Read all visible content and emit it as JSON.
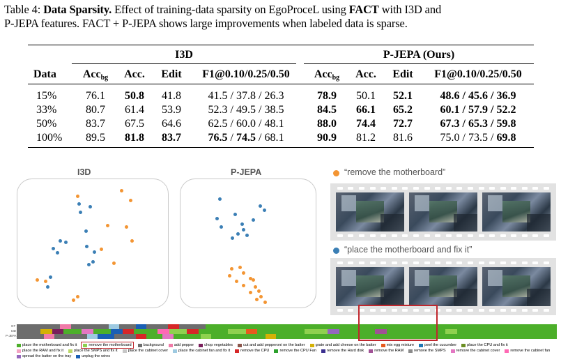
{
  "caption": {
    "label": "Table 4:",
    "title": "Data Sparsity.",
    "text_a": "Effect of training-data sparsity on EgoProceL using",
    "method": "FACT",
    "text_b": "with I3D and",
    "line2": "P-JEPA features. FACT + P-JEPA shows large improvements when labeled data is sparse."
  },
  "table": {
    "group_i3d": "I3D",
    "group_pjepa": "P-JEPA (Ours)",
    "col_data": "Data",
    "col_acc_bg": "Acc",
    "col_acc_bg_sub": "bg",
    "col_acc": "Acc.",
    "col_edit": "Edit",
    "col_f1": "F1@0.10/0.25/0.50",
    "rows": [
      {
        "data": "15%",
        "i3d": {
          "accbg": "76.1",
          "acc": "50.8",
          "edit": "41.8",
          "f1a": "41.5",
          "f1b": "37.8",
          "f1c": "26.3"
        },
        "pj": {
          "accbg": "78.9",
          "acc": "50.1",
          "edit": "52.1",
          "f1a": "48.6",
          "f1b": "45.6",
          "f1c": "36.9"
        }
      },
      {
        "data": "33%",
        "i3d": {
          "accbg": "80.7",
          "acc": "61.4",
          "edit": "53.9",
          "f1a": "52.3",
          "f1b": "49.5",
          "f1c": "38.5"
        },
        "pj": {
          "accbg": "84.5",
          "acc": "66.1",
          "edit": "65.2",
          "f1a": "60.1",
          "f1b": "57.9",
          "f1c": "52.2"
        }
      },
      {
        "data": "50%",
        "i3d": {
          "accbg": "83.7",
          "acc": "67.5",
          "edit": "64.6",
          "f1a": "62.5",
          "f1b": "60.0",
          "f1c": "48.1"
        },
        "pj": {
          "accbg": "88.0",
          "acc": "74.4",
          "edit": "72.7",
          "f1a": "67.3",
          "f1b": "65.3",
          "f1c": "59.8"
        }
      },
      {
        "data": "100%",
        "i3d": {
          "accbg": "89.5",
          "acc": "81.8",
          "edit": "83.7",
          "f1a": "76.5",
          "f1b": "74.5",
          "f1c": "68.1"
        },
        "pj": {
          "accbg": "90.9",
          "acc": "81.2",
          "edit": "81.6",
          "f1a": "75.0",
          "f1b": "73.5",
          "f1c": "69.8"
        }
      }
    ]
  },
  "figure": {
    "panel_i3d_title": "I3D",
    "panel_pjepa_title": "P-JEPA",
    "quote_orange": "“remove the motherboard”",
    "quote_blue": "“place the motherboard and fix it”",
    "colors": {
      "blue": "#3b7fb5",
      "orange": "#f39533",
      "highlight": "#c0272d"
    },
    "row_labels": [
      "GT",
      "I3D",
      "P-JEPA"
    ],
    "legend": [
      {
        "label": "place the motherboard and fix it",
        "color": "#4caf2a"
      },
      {
        "label": "remove the motherboard",
        "color": "#8fd14f",
        "highlight": true
      },
      {
        "label": "background",
        "color": "#6d6d6d"
      },
      {
        "label": "add pepper",
        "color": "#f07aa8"
      },
      {
        "label": "chop vegetables",
        "color": "#7a1f5c"
      },
      {
        "label": "cut and add pepperoni on the batter",
        "color": "#8c564b"
      },
      {
        "label": "grate and add cheese on the batter",
        "color": "#d4b106"
      },
      {
        "label": "mix egg mixture",
        "color": "#e65a1e"
      },
      {
        "label": "peel the cucumber",
        "color": "#1f77b4"
      },
      {
        "label": "place the CPU and fix it",
        "color": "#6b8e23"
      },
      {
        "label": "place the RAM and fix it",
        "color": "#f4a3c4"
      },
      {
        "label": "place the SMPS and fix it",
        "color": "#bcd86a"
      },
      {
        "label": "place the cabinet cover",
        "color": "#c7c7c7"
      },
      {
        "label": "place the cabinet fan and fix it",
        "color": "#9ecae1"
      },
      {
        "label": "remove the CPU",
        "color": "#d62728"
      },
      {
        "label": "remove the CPU Fan",
        "color": "#2ca02c"
      },
      {
        "label": "remove the Hard disk",
        "color": "#3b2f8f"
      },
      {
        "label": "remove the RAM",
        "color": "#a05195"
      },
      {
        "label": "remove the SMPS",
        "color": "#8a8a8a"
      },
      {
        "label": "remove the cabinet cover",
        "color": "#e377c2"
      },
      {
        "label": "remove the cabinet fan",
        "color": "#ff69b4"
      },
      {
        "label": "spread the batter on the tray",
        "color": "#9467bd"
      },
      {
        "label": "unplug the wires",
        "color": "#1a5fb4"
      }
    ]
  }
}
